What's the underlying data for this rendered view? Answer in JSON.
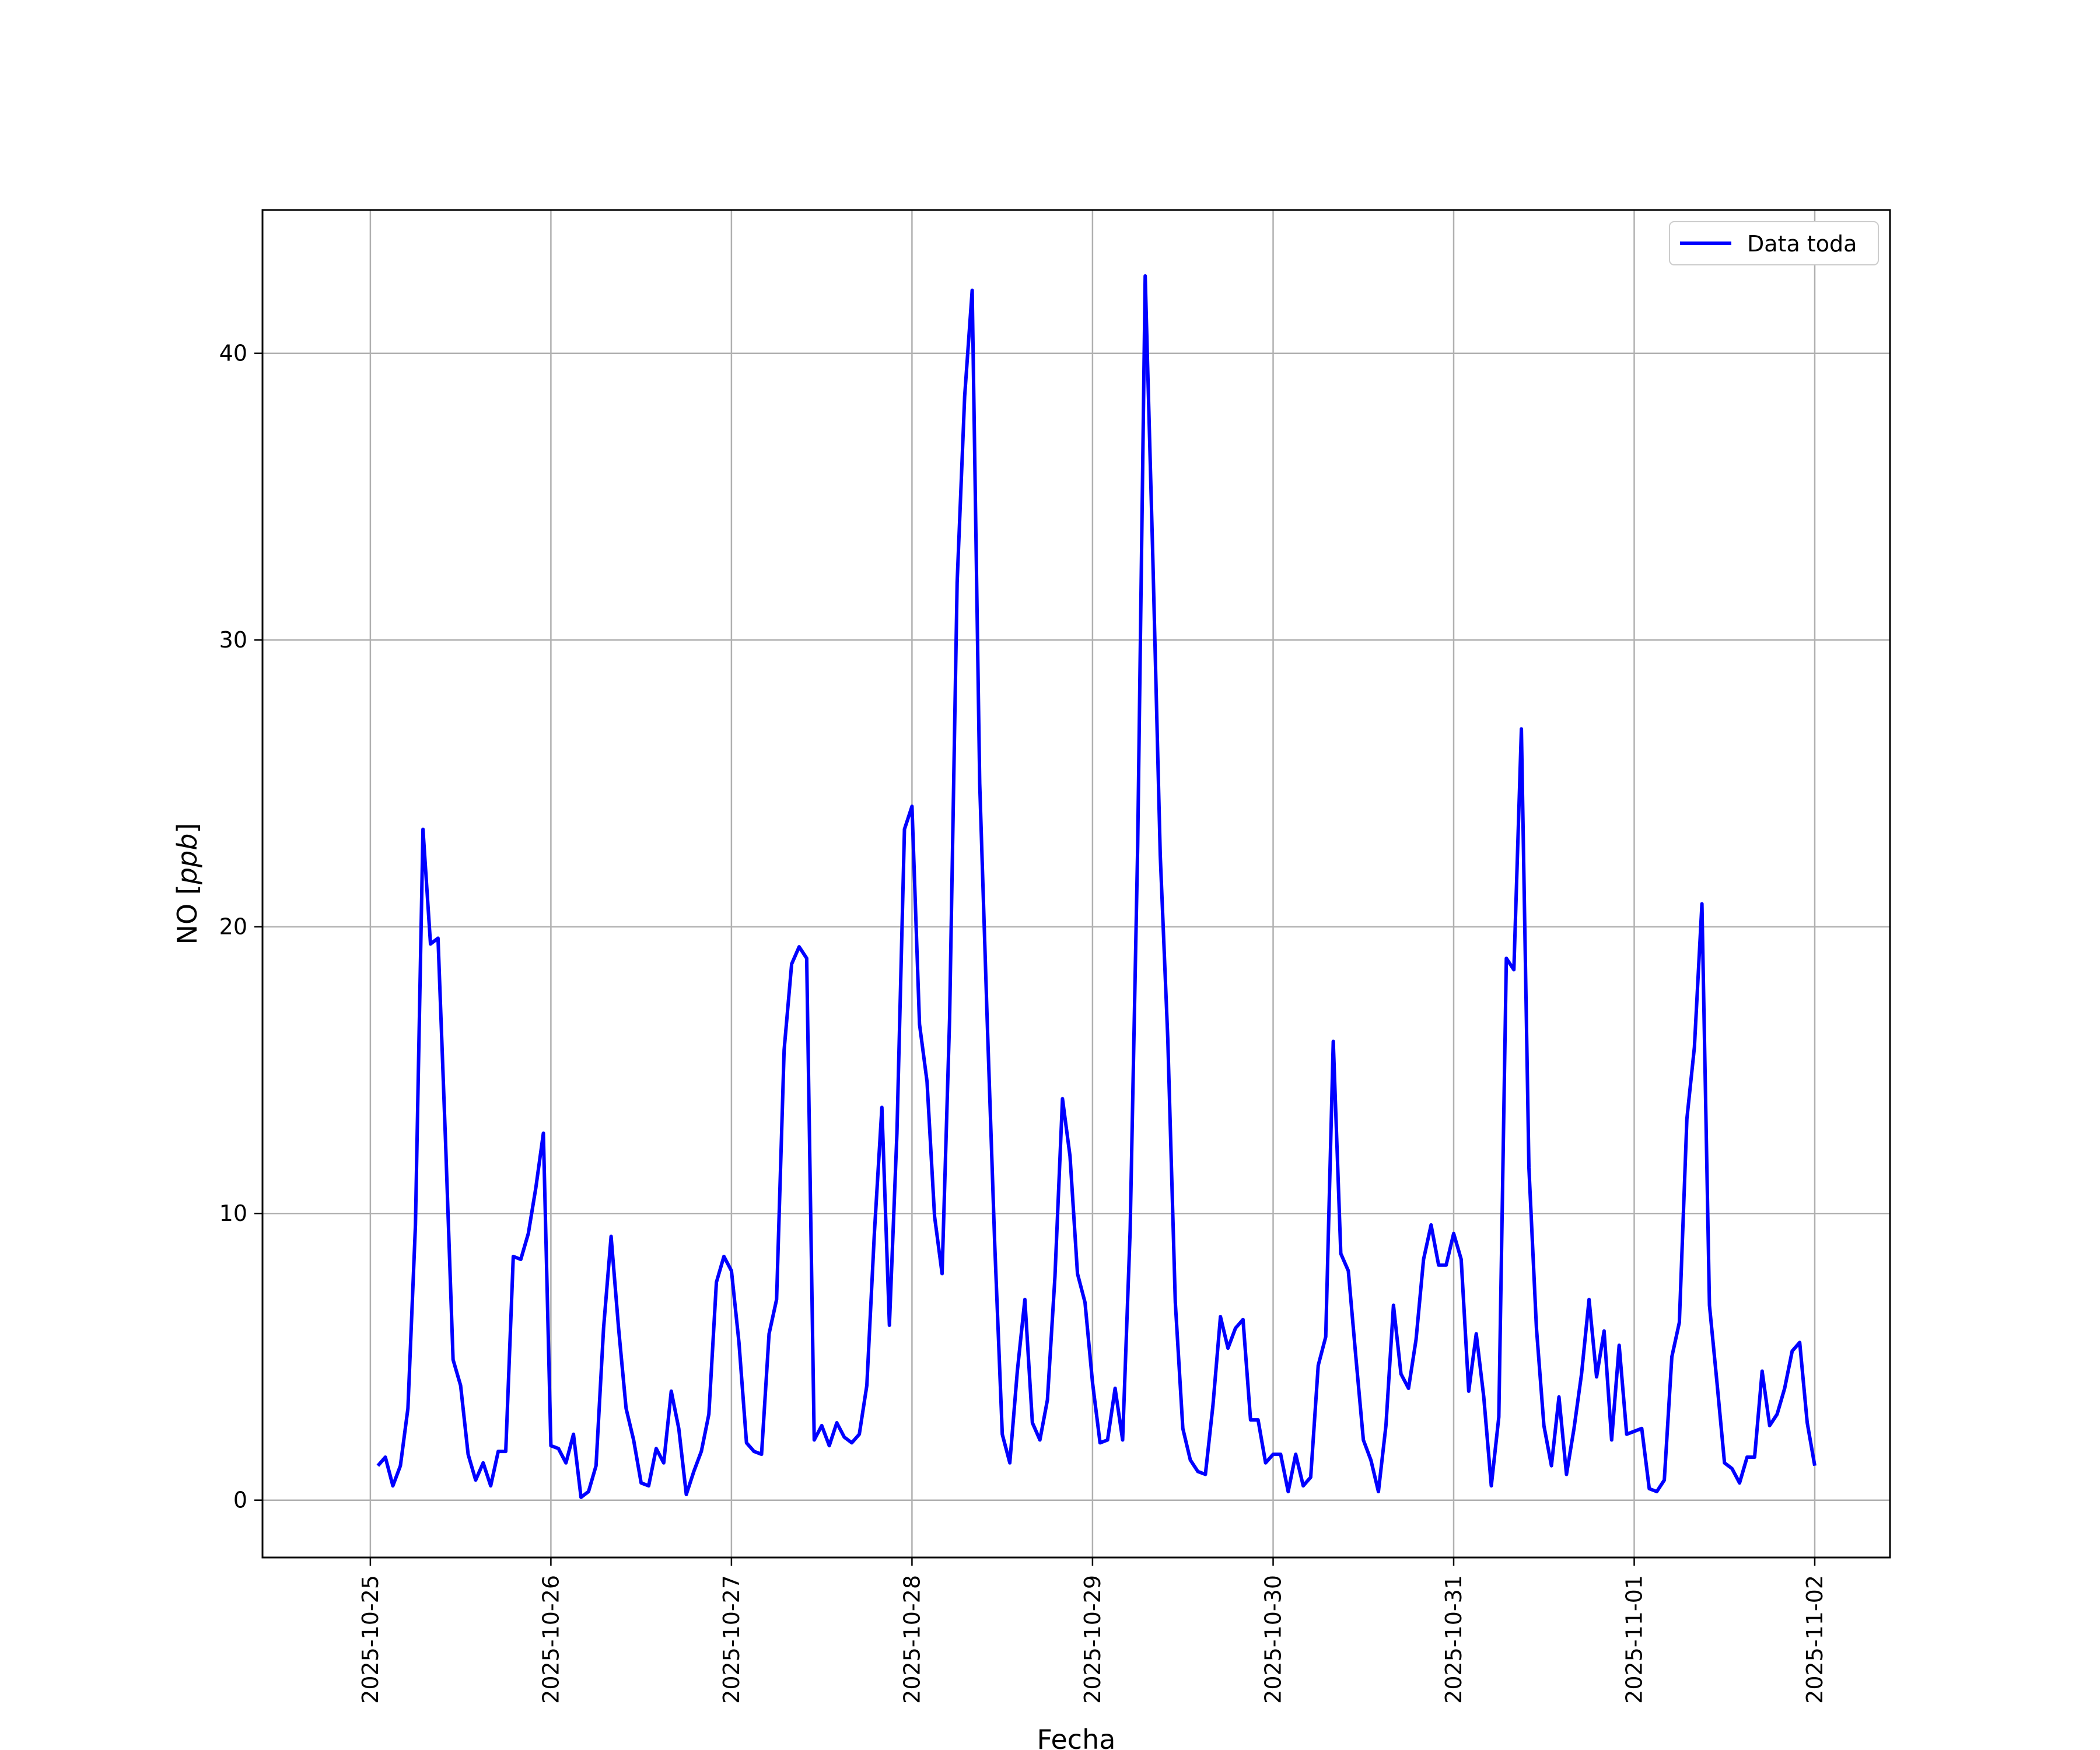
{
  "chart_data": {
    "type": "line",
    "xlabel": "Fecha",
    "ylabel_plain": "NO ",
    "ylabel_unit": "ppb",
    "xlim": [
      "2025-10-24T09:40",
      "2025-11-02T10:00"
    ],
    "ylim": [
      -2,
      45
    ],
    "grid": true,
    "legend_placement": "top-right",
    "line_color": "#0000ff",
    "x_ticks": [
      "2025-10-25",
      "2025-10-26",
      "2025-10-27",
      "2025-10-28",
      "2025-10-29",
      "2025-10-30",
      "2025-10-31",
      "2025-11-01",
      "2025-11-02"
    ],
    "y_ticks": [
      0,
      10,
      20,
      30,
      40
    ],
    "series": [
      {
        "name": "Data toda",
        "x_start": "2025-10-25T01:00",
        "x_step_hours": 1,
        "values": [
          1.2,
          1.5,
          0.5,
          1.2,
          3.2,
          9.6,
          23.4,
          19.4,
          19.6,
          12.5,
          4.9,
          4.0,
          1.6,
          0.7,
          1.3,
          0.5,
          1.7,
          1.7,
          8.5,
          8.4,
          9.3,
          10.9,
          12.8,
          1.9,
          1.8,
          1.3,
          2.3,
          0.1,
          0.3,
          1.2,
          6.0,
          9.2,
          6.0,
          3.2,
          2.1,
          0.6,
          0.5,
          1.8,
          1.3,
          3.8,
          2.5,
          0.2,
          1.0,
          1.7,
          3.0,
          7.6,
          8.5,
          8.0,
          5.5,
          2.0,
          1.7,
          1.6,
          5.8,
          7.0,
          15.7,
          18.7,
          19.3,
          18.9,
          2.1,
          2.6,
          1.9,
          2.7,
          2.2,
          2.0,
          2.3,
          4.0,
          9.3,
          13.7,
          6.1,
          12.8,
          23.4,
          24.2,
          16.6,
          14.6,
          9.9,
          7.9,
          16.8,
          32.0,
          38.5,
          42.2,
          25.0,
          16.7,
          8.9,
          2.3,
          1.3,
          4.5,
          7.0,
          2.7,
          2.1,
          3.5,
          7.8,
          14.0,
          12.0,
          7.9,
          6.9,
          4.1,
          2.0,
          2.1,
          3.9,
          2.1,
          9.4,
          22.8,
          42.7,
          33.0,
          22.5,
          16.1,
          6.9,
          2.5,
          1.4,
          1.0,
          0.9,
          3.3,
          6.4,
          5.3,
          6.0,
          6.3,
          2.8,
          2.8,
          1.3,
          1.6,
          1.6,
          0.3,
          1.6,
          0.5,
          0.8,
          4.7,
          5.7,
          16.0,
          8.6,
          8.0,
          5.0,
          2.1,
          1.4,
          0.3,
          2.6,
          6.8,
          4.4,
          3.9,
          5.6,
          8.4,
          9.6,
          8.2,
          8.2,
          9.3,
          8.4,
          3.8,
          5.8,
          3.6,
          0.5,
          2.9,
          18.9,
          18.5,
          26.9,
          11.6,
          6.0,
          2.6,
          1.2,
          3.6,
          0.9,
          2.5,
          4.4,
          7.0,
          4.3,
          5.9,
          2.1,
          5.4,
          2.3,
          2.4,
          2.5,
          0.4,
          0.3,
          0.7,
          5.0,
          6.2,
          13.3,
          15.8,
          20.8,
          6.8,
          4.1,
          1.3,
          1.1,
          0.6,
          1.5,
          1.5,
          4.5,
          2.6,
          3.0,
          3.9,
          5.2,
          5.5,
          2.7,
          1.2
        ]
      }
    ]
  }
}
